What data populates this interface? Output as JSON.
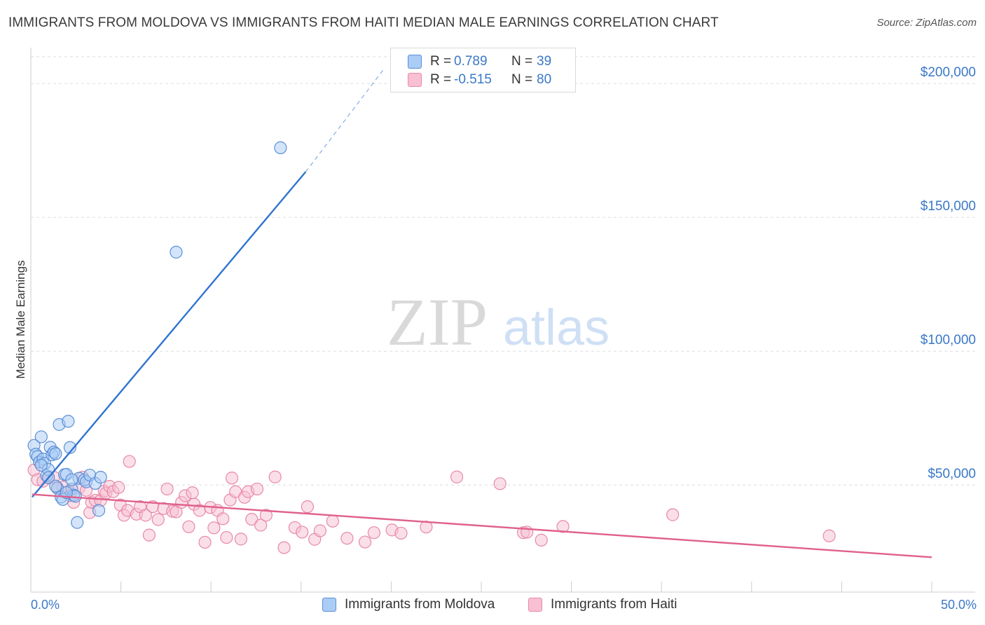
{
  "header": {
    "title": "IMMIGRANTS FROM MOLDOVA VS IMMIGRANTS FROM HAITI MEDIAN MALE EARNINGS CORRELATION CHART",
    "source": "Source: ZipAtlas.com"
  },
  "watermark": {
    "zip": "ZIP",
    "atlas": "atlas"
  },
  "legend": {
    "rows": [
      {
        "r_label": "R =",
        "r_value": "0.789",
        "n_label": "N =",
        "n_value": "39"
      },
      {
        "r_label": "R =",
        "r_value": "-0.515",
        "n_label": "N =",
        "n_value": "80"
      }
    ]
  },
  "colors": {
    "moldova_fill": "#aaccf5",
    "moldova_stroke": "#5b8fd6",
    "moldova_line": "#2f74d0",
    "haiti_fill": "#f8c0d2",
    "haiti_stroke": "#e888a8",
    "haiti_line": "#e0608c",
    "grid": "#dddddd",
    "tick_label": "#3a78c8"
  },
  "chart_data": {
    "type": "scatter",
    "title": "IMMIGRANTS FROM MOLDOVA VS IMMIGRANTS FROM HAITI MEDIAN MALE EARNINGS CORRELATION CHART",
    "xlabel": "",
    "ylabel": "Median Male Earnings",
    "xlim": [
      0,
      50
    ],
    "ylim": [
      10000,
      210000
    ],
    "x_tick_labels": [
      "0.0%",
      "50.0%"
    ],
    "y_ticks": [
      50000,
      100000,
      150000,
      200000
    ],
    "y_tick_labels": [
      "$50,000",
      "$100,000",
      "$150,000",
      "$200,000"
    ],
    "grid": true,
    "legend_position": "top-center",
    "series": [
      {
        "name": "Immigrants from Moldova",
        "r": 0.789,
        "n": 39,
        "trend": {
          "x0": 0.0,
          "y0": 45500,
          "x1": 15.2,
          "y1": 167000,
          "dash_to_x": 19.5,
          "dash_to_y": 205000
        },
        "points": [
          [
            0.1,
            64800
          ],
          [
            0.2,
            61500
          ],
          [
            0.3,
            60600
          ],
          [
            0.4,
            58600
          ],
          [
            0.5,
            68000
          ],
          [
            0.6,
            59700
          ],
          [
            0.7,
            58100
          ],
          [
            0.8,
            53500
          ],
          [
            0.9,
            55800
          ],
          [
            1.0,
            64100
          ],
          [
            1.1,
            61300
          ],
          [
            1.2,
            62300
          ],
          [
            1.3,
            61700
          ],
          [
            1.4,
            48800
          ],
          [
            1.5,
            72600
          ],
          [
            1.6,
            45500
          ],
          [
            1.7,
            44600
          ],
          [
            1.8,
            53900
          ],
          [
            1.9,
            54000
          ],
          [
            2.0,
            73800
          ],
          [
            2.1,
            64000
          ],
          [
            2.2,
            48500
          ],
          [
            2.3,
            46200
          ],
          [
            2.4,
            45800
          ],
          [
            2.5,
            36000
          ],
          [
            2.6,
            52500
          ],
          [
            2.9,
            51900
          ],
          [
            3.0,
            51200
          ],
          [
            3.2,
            53700
          ],
          [
            3.5,
            50600
          ],
          [
            3.7,
            40500
          ],
          [
            3.8,
            52900
          ],
          [
            8.0,
            137000
          ],
          [
            13.8,
            176000
          ],
          [
            0.9,
            52800
          ],
          [
            1.3,
            49600
          ],
          [
            1.9,
            47200
          ],
          [
            2.2,
            52000
          ],
          [
            0.5,
            57400
          ]
        ]
      },
      {
        "name": "Immigrants from Haiti",
        "r": -0.515,
        "n": 80,
        "trend": {
          "x0": 0.0,
          "y0": 46500,
          "x1": 50.0,
          "y1": 23000
        },
        "points": [
          [
            0.1,
            55600
          ],
          [
            0.3,
            52000
          ],
          [
            0.6,
            51400
          ],
          [
            0.9,
            52700
          ],
          [
            1.2,
            52900
          ],
          [
            1.4,
            49100
          ],
          [
            1.7,
            49200
          ],
          [
            2.0,
            47400
          ],
          [
            2.3,
            43500
          ],
          [
            2.6,
            48900
          ],
          [
            2.8,
            52900
          ],
          [
            3.0,
            48000
          ],
          [
            3.2,
            39700
          ],
          [
            3.3,
            43500
          ],
          [
            3.5,
            44300
          ],
          [
            3.8,
            44200
          ],
          [
            4.0,
            47700
          ],
          [
            4.1,
            47000
          ],
          [
            4.3,
            49500
          ],
          [
            4.5,
            47500
          ],
          [
            4.8,
            49100
          ],
          [
            4.9,
            42500
          ],
          [
            5.1,
            38700
          ],
          [
            5.3,
            40500
          ],
          [
            5.4,
            58800
          ],
          [
            5.8,
            39100
          ],
          [
            6.0,
            41900
          ],
          [
            6.3,
            38700
          ],
          [
            6.5,
            31300
          ],
          [
            6.7,
            41900
          ],
          [
            7.0,
            37100
          ],
          [
            7.3,
            41200
          ],
          [
            7.5,
            48500
          ],
          [
            7.8,
            40200
          ],
          [
            8.0,
            40000
          ],
          [
            8.3,
            43500
          ],
          [
            8.5,
            46000
          ],
          [
            8.7,
            34400
          ],
          [
            8.9,
            47100
          ],
          [
            9.0,
            42800
          ],
          [
            9.3,
            40500
          ],
          [
            9.6,
            28600
          ],
          [
            9.9,
            41600
          ],
          [
            10.1,
            34000
          ],
          [
            10.3,
            40500
          ],
          [
            10.6,
            37400
          ],
          [
            10.8,
            30400
          ],
          [
            11.0,
            44400
          ],
          [
            11.1,
            52600
          ],
          [
            11.3,
            47500
          ],
          [
            11.6,
            29800
          ],
          [
            11.8,
            45400
          ],
          [
            12.0,
            47500
          ],
          [
            12.2,
            37200
          ],
          [
            12.5,
            48500
          ],
          [
            12.7,
            35000
          ],
          [
            13.0,
            38700
          ],
          [
            13.5,
            53000
          ],
          [
            14.0,
            26600
          ],
          [
            14.6,
            34100
          ],
          [
            15.0,
            32400
          ],
          [
            15.3,
            41900
          ],
          [
            15.7,
            29700
          ],
          [
            16.0,
            32900
          ],
          [
            16.7,
            36500
          ],
          [
            17.5,
            30100
          ],
          [
            18.5,
            28700
          ],
          [
            19.0,
            32200
          ],
          [
            20.0,
            33200
          ],
          [
            20.5,
            32000
          ],
          [
            21.9,
            34300
          ],
          [
            23.6,
            53000
          ],
          [
            26.0,
            50500
          ],
          [
            27.3,
            32200
          ],
          [
            27.5,
            32400
          ],
          [
            28.3,
            29400
          ],
          [
            29.5,
            34500
          ],
          [
            35.6,
            38900
          ],
          [
            44.3,
            31000
          ],
          [
            2.1,
            46000
          ]
        ]
      }
    ]
  },
  "bottom_legend": {
    "items": [
      {
        "label": "Immigrants from Moldova"
      },
      {
        "label": "Immigrants from Haiti"
      }
    ]
  }
}
